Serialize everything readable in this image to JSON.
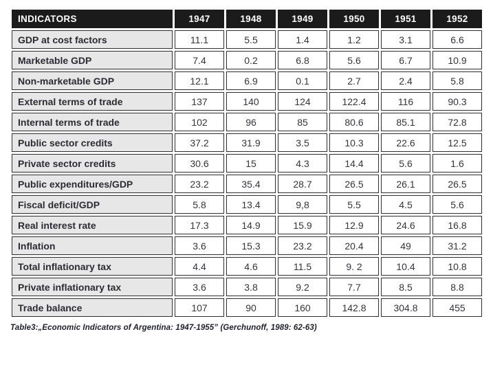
{
  "chart_data": {
    "type": "table",
    "columns": [
      "INDICATORS",
      "1947",
      "1948",
      "1949",
      "1950",
      "1951",
      "1952"
    ],
    "rows": [
      {
        "label": "GDP at cost factors",
        "values": [
          "11.1",
          "5.5",
          "1.4",
          "1.2",
          "3.1",
          "6.6"
        ]
      },
      {
        "label": "Marketable GDP",
        "values": [
          "7.4",
          "0.2",
          "6.8",
          "5.6",
          "6.7",
          "10.9"
        ]
      },
      {
        "label": "Non-marketable GDP",
        "values": [
          "12.1",
          "6.9",
          "0.1",
          "2.7",
          "2.4",
          "5.8"
        ]
      },
      {
        "label": "External terms of trade",
        "values": [
          "137",
          "140",
          "124",
          "122.4",
          "116",
          "90.3"
        ]
      },
      {
        "label": "Internal terms of trade",
        "values": [
          "102",
          "96",
          "85",
          "80.6",
          "85.1",
          "72.8"
        ]
      },
      {
        "label": "Public sector credits",
        "values": [
          "37.2",
          "31.9",
          "3.5",
          "10.3",
          "22.6",
          "12.5"
        ]
      },
      {
        "label": "Private sector credits",
        "values": [
          "30.6",
          "15",
          "4.3",
          "14.4",
          "5.6",
          "1.6"
        ]
      },
      {
        "label": "Public expenditures/GDP",
        "values": [
          "23.2",
          "35.4",
          "28.7",
          "26.5",
          "26.1",
          "26.5"
        ]
      },
      {
        "label": "Fiscal deficit/GDP",
        "values": [
          "5.8",
          "13.4",
          "9,8",
          "5.5",
          "4.5",
          "5.6"
        ]
      },
      {
        "label": "Real interest rate",
        "values": [
          "17.3",
          "14.9",
          "15.9",
          "12.9",
          "24.6",
          "16.8"
        ]
      },
      {
        "label": "Inflation",
        "values": [
          "3.6",
          "15.3",
          "23.2",
          "20.4",
          "49",
          "31.2"
        ]
      },
      {
        "label": "Total inflationary tax",
        "values": [
          "4.4",
          "4.6",
          "11.5",
          "9. 2",
          "10.4",
          "10.8"
        ]
      },
      {
        "label": "Private inflationary tax",
        "values": [
          "3.6",
          "3.8",
          "9.2",
          "7.7",
          "8.5",
          "8.8"
        ]
      },
      {
        "label": "Trade balance",
        "values": [
          "107",
          "90",
          "160",
          "142.8",
          "304.8",
          "455"
        ]
      }
    ],
    "caption": "Table3:„Economic Indicators of Argentina: 1947-1955” (Gerchunoff, 1989: 62-63)",
    "colors": {
      "header_bg": "#1b1b1b",
      "header_text": "#ffffff",
      "label_bg": "#e7e7e7",
      "cell_border": "#2e2e2e"
    }
  }
}
